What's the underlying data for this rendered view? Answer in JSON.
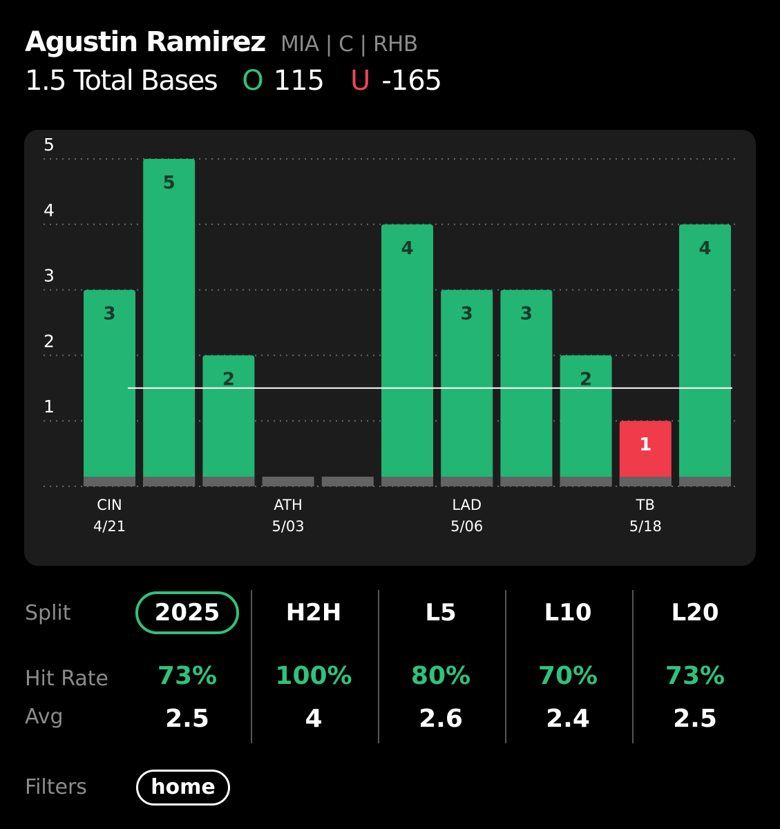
{
  "header": {
    "player_name": "Agustin Ramirez",
    "player_meta": "MIA | C | RHB",
    "prop_label": "1.5 Total Bases",
    "over_letter": "O",
    "over_odds": "115",
    "under_letter": "U",
    "under_odds": "-165"
  },
  "chart_data": {
    "type": "bar",
    "line": 1.5,
    "ylim": [
      0,
      5
    ],
    "y_ticks": [
      "1",
      "2",
      "3",
      "4",
      "5"
    ],
    "bars": [
      {
        "value": 3,
        "label": "3",
        "status": "over"
      },
      {
        "value": 5,
        "label": "5",
        "status": "over"
      },
      {
        "value": 2,
        "label": "2",
        "status": "over"
      },
      {
        "value": 0,
        "label": "",
        "status": "none"
      },
      {
        "value": 0,
        "label": "",
        "status": "none"
      },
      {
        "value": 4,
        "label": "4",
        "status": "over"
      },
      {
        "value": 3,
        "label": "3",
        "status": "over"
      },
      {
        "value": 3,
        "label": "3",
        "status": "over"
      },
      {
        "value": 2,
        "label": "2",
        "status": "over"
      },
      {
        "value": 1,
        "label": "1",
        "status": "under"
      },
      {
        "value": 4,
        "label": "4",
        "status": "over"
      }
    ],
    "x_labels": [
      {
        "bar_index": 0,
        "team": "CIN",
        "date": "4/21"
      },
      {
        "bar_index": 3,
        "team": "ATH",
        "date": "5/03"
      },
      {
        "bar_index": 6,
        "team": "LAD",
        "date": "5/06"
      },
      {
        "bar_index": 9,
        "team": "TB",
        "date": "5/18"
      }
    ],
    "colors": {
      "over": "#22b573",
      "under": "#ef3b4a",
      "base": "#636363",
      "line": "#ffffff",
      "grid": "#6a6a6a",
      "tick": "#ffffff",
      "label_dark": "#1a3a2a",
      "label_light": "#ffffff"
    }
  },
  "stats": {
    "split_label": "Split",
    "hit_rate_label": "Hit Rate",
    "avg_label": "Avg",
    "filters_label": "Filters",
    "columns": [
      {
        "split": "2025",
        "hit_rate": "73%",
        "avg": "2.5",
        "active": true
      },
      {
        "split": "H2H",
        "hit_rate": "100%",
        "avg": "4",
        "active": false
      },
      {
        "split": "L5",
        "hit_rate": "80%",
        "avg": "2.6",
        "active": false
      },
      {
        "split": "L10",
        "hit_rate": "70%",
        "avg": "2.4",
        "active": false
      },
      {
        "split": "L20",
        "hit_rate": "73%",
        "avg": "2.5",
        "active": false
      }
    ],
    "filters": [
      {
        "label": "home"
      }
    ]
  }
}
